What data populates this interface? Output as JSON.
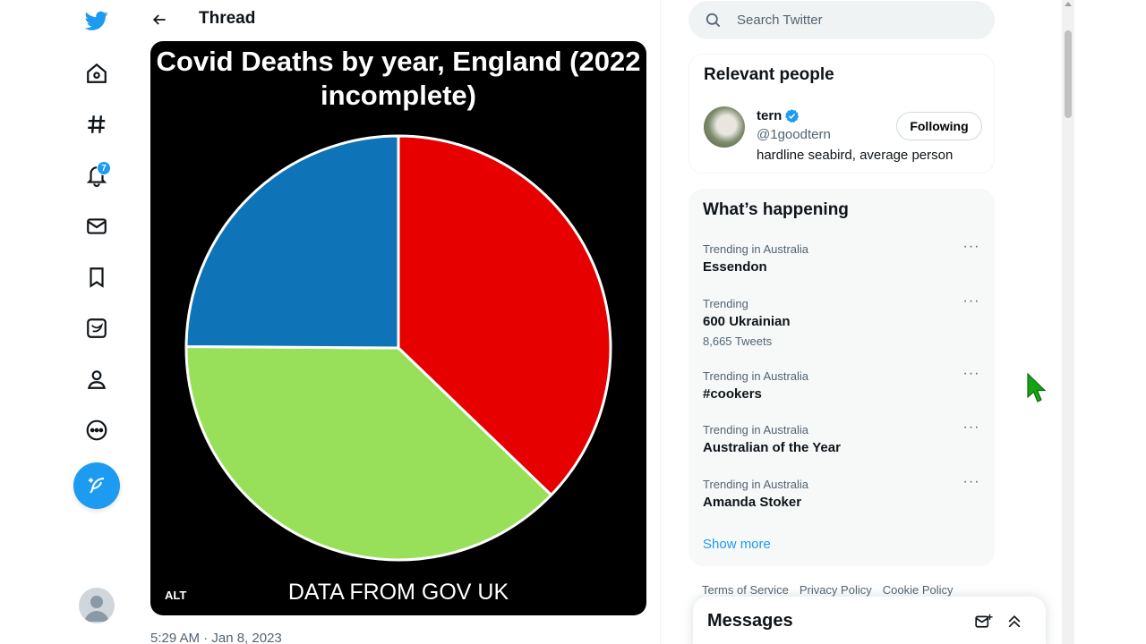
{
  "app": {
    "title": "Twitter"
  },
  "nav": {
    "notifications_badge": "7",
    "items": [
      "home",
      "explore",
      "notifications",
      "messages",
      "bookmarks",
      "twitter-blue",
      "profile",
      "more"
    ]
  },
  "header": {
    "title": "Thread"
  },
  "tweet": {
    "media": {
      "title": "Covid Deaths by year, England (2022 incomplete)",
      "footer": "DATA FROM GOV UK",
      "alt_badge": "ALT"
    },
    "timestamp": "5:29 AM · Jan 8, 2023"
  },
  "chart_data": {
    "type": "pie",
    "title": "Covid Deaths by year, England (2022 incomplete)",
    "note": "DATA FROM GOV UK",
    "slices": [
      {
        "color": "#e60000",
        "value": 37.2
      },
      {
        "color": "#99e05a",
        "value": 37.9
      },
      {
        "color": "#0f73b7",
        "value": 24.9
      }
    ]
  },
  "search": {
    "placeholder": "Search Twitter"
  },
  "relevant_people": {
    "title": "Relevant people",
    "person": {
      "name": "tern",
      "handle": "@1goodtern",
      "bio": "hardline seabird, average person",
      "button": "Following"
    }
  },
  "trending": {
    "title": "What’s happening",
    "items": [
      {
        "context": "Trending in Australia",
        "topic": "Essendon",
        "count": ""
      },
      {
        "context": "Trending",
        "topic": "600 Ukrainian",
        "count": "8,665 Tweets"
      },
      {
        "context": "Trending in Australia",
        "topic": "#cookers",
        "count": ""
      },
      {
        "context": "Trending in Australia",
        "topic": "Australian of the Year",
        "count": ""
      },
      {
        "context": "Trending in Australia",
        "topic": "Amanda Stoker",
        "count": ""
      }
    ],
    "show_more": "Show more"
  },
  "footer": {
    "links": [
      "Terms of Service",
      "Privacy Policy",
      "Cookie Policy"
    ]
  },
  "messages": {
    "title": "Messages"
  },
  "colors": {
    "accent": "#1d9bf0",
    "verified": "#1d9bf0",
    "cursor": "#16a316"
  }
}
